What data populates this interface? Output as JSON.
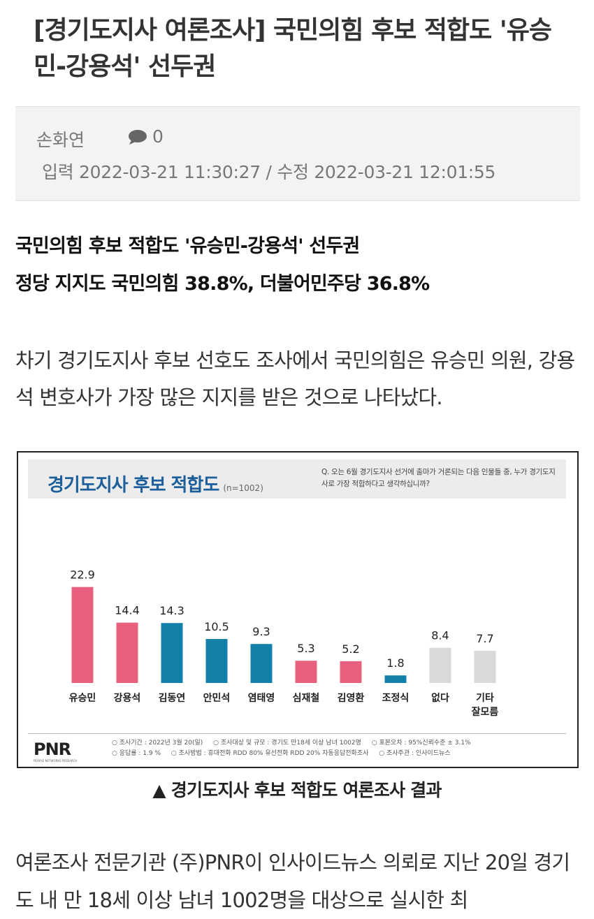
{
  "article": {
    "headline": "[경기도지사 여론조사] 국민의힘 후보 적합도 '유승민-강용석' 선두권",
    "author": "손화연",
    "comment_count": "0",
    "dates": "입력 2022-03-21 11:30:27  / 수정 2022-03-21 12:01:55",
    "subtitle_1": "국민의힘 후보 적합도 '유승민-강용석' 선두권",
    "subtitle_2": "정당 지지도 국민의힘 38.8%, 더불어민주당 36.8%",
    "lead": "차기 경기도지사 후보 선호도 조사에서 국민의힘은 유승민 의원, 강용석 변호사가 가장 많은 지지를 받은 것으로 나타났다.",
    "caption": "▲ 경기도지사 후보 적합도 여론조사 결과",
    "body_start": "여론조사 전문기관 (주)PNR이 인사이드뉴스 의뢰로 지난 20일 경기도 내 만 18세 이상 남녀 1002명을 대상으로 실시한 최"
  },
  "figure": {
    "title": "경기도지사 후보 적합도",
    "sample": "(n=1002)",
    "question": "Q. 오는 6월 경기도지사 선거에 출마가 거론되는 다음 인물들 중, 누가 경기도지사로 가장 적합하다고 생각하십니까?",
    "logo": "PNR",
    "logo_sub": "PEOPLE NETWORKS RESEARCH",
    "notes": [
      "○ 조사기간 : 2022년 3월 20(일)",
      "○ 조사대상 및 규모 : 경기도 만18세 이상 남녀 1002명",
      "○ 표본오차 : 95%신뢰수준 ± 3.1%",
      "○ 응답률 : 1.9 %",
      "○ 조사방법 : 휴대전화 RDD 80% 유선전화 RDD 20% 자동응답전화조사",
      "○ 조사주관 : 인사이드뉴스"
    ]
  },
  "chart_data": {
    "type": "bar",
    "categories": [
      "유승민",
      "강용석",
      "김동연",
      "안민석",
      "염태영",
      "심재철",
      "김영환",
      "조정식",
      "없다",
      "기타\n잘모름"
    ],
    "values": [
      22.9,
      14.4,
      14.3,
      10.5,
      9.3,
      5.3,
      5.2,
      1.8,
      8.4,
      7.7
    ],
    "value_labels": [
      "22.9",
      "14.4",
      "14.3",
      "10.5",
      "9.3",
      "5.3",
      "5.2",
      "1.8",
      "8.4",
      "7.7"
    ],
    "colors": [
      "#e8607e",
      "#e8607e",
      "#1280a8",
      "#1280a8",
      "#1280a8",
      "#e8607e",
      "#e8607e",
      "#1280a8",
      "#d9d9d9",
      "#d9d9d9"
    ],
    "ylim": [
      0,
      25
    ],
    "grid": false,
    "legend": "none"
  }
}
